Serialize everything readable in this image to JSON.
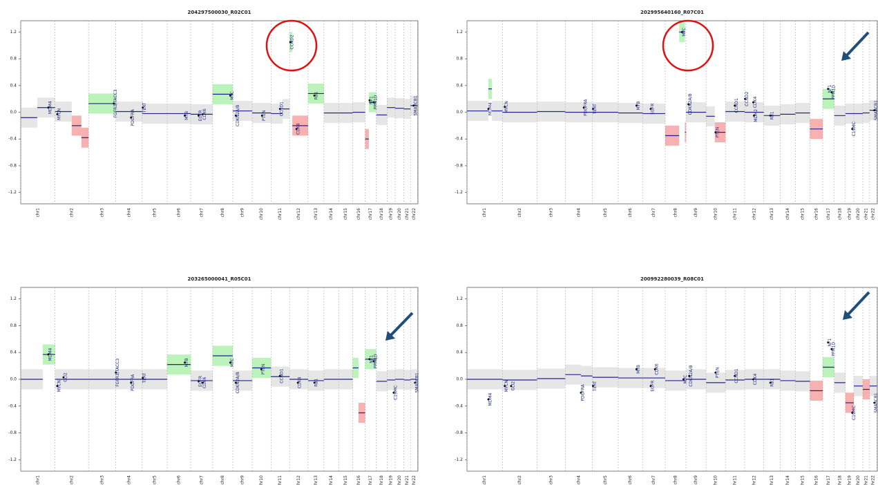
{
  "chart_data": [
    {
      "type": "segments",
      "title": "204297500030_R02C01",
      "xlim": [
        0,
        2881
      ],
      "ylim": [
        -1.37,
        1.37
      ],
      "yticks": [
        1.2,
        0.8,
        0.4,
        {
          "value": 0,
          "label": "0.0"
        },
        -0.4,
        -0.8,
        -1.2
      ],
      "xticks": [
        0,
        249,
        492,
        690,
        881,
        1062,
        1233,
        1392,
        1538,
        1679,
        1815,
        1950,
        2084,
        2199,
        2306,
        2408,
        2498,
        2579,
        2657,
        2716,
        2779,
        2827,
        2878
      ],
      "categories": [
        "chr1",
        "chr2",
        "chr3",
        "chr4",
        "chr5",
        "chr6",
        "chr7",
        "chr8",
        "chr9",
        "chr10",
        "chr11",
        "chr12",
        "chr13",
        "chr14",
        "chr15",
        "chr16",
        "chr17",
        "chr18",
        "chr19",
        "chr20",
        "chr21",
        "chr22"
      ],
      "segment_color": "#23238e",
      "gene_color": "#1a237e",
      "gain_color": "#3ddc3d",
      "loss_color": "#e82020",
      "neutral_color": "#b8b8b8",
      "segments": {
        "start": [
          0,
          120,
          249,
          370,
          440,
          492,
          690,
          881,
          1062,
          1233,
          1392,
          1538,
          1679,
          1815,
          1900,
          1950,
          1970,
          2084,
          2199,
          2306,
          2408,
          2498,
          2525,
          2579,
          2657,
          2716,
          2779,
          2827
        ],
        "end": [
          120,
          249,
          370,
          440,
          492,
          690,
          881,
          1062,
          1233,
          1392,
          1538,
          1679,
          1815,
          1900,
          1950,
          1970,
          2084,
          2199,
          2306,
          2408,
          2498,
          2525,
          2579,
          2657,
          2716,
          2779,
          2827,
          2878
        ],
        "values": [
          -0.08,
          0.07,
          0.01,
          -0.2,
          -0.38,
          0.13,
          0.01,
          -0.02,
          -0.02,
          -0.03,
          0.27,
          0.02,
          -0.01,
          -0.02,
          0.05,
          1.05,
          -0.2,
          0.28,
          -0.01,
          -0.01,
          0,
          -0.4,
          0.15,
          -0.04,
          0.07,
          0.06,
          0.05,
          0.1
        ]
      },
      "genes": {
        "labels": [
          "MDM4",
          "MYCN",
          "FGFR3/TACC3",
          "PDGFRA",
          "TERT",
          "MYB",
          "EGFR",
          "CDK6",
          "MYC",
          "CDKN2A/B",
          "PTEN",
          "CCND1",
          "CCND2",
          "CDK4",
          "RB1",
          "NF1",
          "PPM1D",
          "SMARCB1"
        ],
        "x": [
          200,
          265,
          675,
          800,
          885,
          1190,
          1290,
          1320,
          1520,
          1560,
          1750,
          1880,
          1955,
          2000,
          2130,
          2530,
          2560,
          2850
        ],
        "y": [
          0.07,
          -0.03,
          0.13,
          -0.08,
          0.07,
          -0.05,
          -0.05,
          -0.03,
          0.25,
          -0.05,
          -0.05,
          0.05,
          1.05,
          -0.25,
          0.25,
          0.18,
          0.15,
          0.1
        ]
      }
    },
    {
      "type": "segments",
      "title": "202995640160_R07C01",
      "xlim": [
        0,
        2881
      ],
      "ylim": [
        -1.37,
        1.37
      ],
      "yticks": [
        1.2,
        0.8,
        0.4,
        {
          "value": 0,
          "label": "0.0"
        },
        -0.4,
        -0.8,
        -1.2
      ],
      "xticks": [
        0,
        249,
        492,
        690,
        881,
        1062,
        1233,
        1392,
        1538,
        1679,
        1815,
        1950,
        2084,
        2199,
        2306,
        2408,
        2498,
        2579,
        2657,
        2716,
        2779,
        2827,
        2878
      ],
      "categories": [
        "chr1",
        "chr2",
        "chr3",
        "chr4",
        "chr5",
        "chr6",
        "chr7",
        "chr8",
        "chr9",
        "chr10",
        "chr11",
        "chr12",
        "chr13",
        "chr14",
        "chr15",
        "chr16",
        "chr17",
        "chr18",
        "chr19",
        "chr20",
        "chr21",
        "chr22"
      ],
      "segment_color": "#23238e",
      "gene_color": "#1a237e",
      "gain_color": "#3ddc3d",
      "loss_color": "#e82020",
      "neutral_color": "#b8b8b8",
      "segments": {
        "start": [
          0,
          150,
          175,
          249,
          492,
          690,
          881,
          1062,
          1233,
          1392,
          1490,
          1530,
          1538,
          1679,
          1740,
          1815,
          1950,
          2084,
          2199,
          2306,
          2408,
          2498,
          2579,
          2657,
          2716,
          2779,
          2827
        ],
        "end": [
          150,
          175,
          249,
          492,
          690,
          881,
          1062,
          1233,
          1392,
          1490,
          1530,
          1538,
          1679,
          1740,
          1815,
          1950,
          2084,
          2199,
          2306,
          2408,
          2498,
          2579,
          2657,
          2716,
          2779,
          2827,
          2878
        ],
        "values": [
          0.02,
          0.35,
          0.02,
          0,
          0.01,
          0,
          0,
          -0.01,
          -0.02,
          -0.35,
          1.2,
          -0.3,
          0,
          -0.06,
          -0.3,
          0.01,
          0,
          -0.05,
          -0.03,
          -0.01,
          -0.25,
          0.2,
          -0.05,
          -0.02,
          -0.02,
          -0.01,
          0.03
        ]
      },
      "genes": {
        "labels": [
          "MDM4",
          "MYCN",
          "PDGFRA",
          "TERT",
          "MYB",
          "EGFR",
          "MYC",
          "CDKN2A/B",
          "PTEN",
          "CCND1",
          "CCND2",
          "CDK4",
          "MDM2",
          "RB1",
          "NF1",
          "PPM1D",
          "C19MC",
          "SMARCB1"
        ],
        "x": [
          150,
          265,
          820,
          885,
          1190,
          1290,
          1510,
          1555,
          1745,
          1880,
          1952,
          2010,
          2015,
          2130,
          2535,
          2560,
          2705,
          2860
        ],
        "y": [
          0.05,
          0.08,
          0.07,
          0.05,
          0.1,
          0.05,
          1.2,
          0.12,
          -0.3,
          0.1,
          0.2,
          0.15,
          -0.05,
          -0.05,
          0.35,
          0.3,
          -0.25,
          0.03
        ]
      }
    },
    {
      "type": "segments",
      "title": "203265000041_R05C01",
      "xlim": [
        0,
        2881
      ],
      "ylim": [
        -1.37,
        1.37
      ],
      "yticks": [
        1.2,
        0.8,
        0.4,
        {
          "value": 0,
          "label": "0.0"
        },
        -0.4,
        -0.8,
        -1.2
      ],
      "xticks": [
        0,
        249,
        492,
        690,
        881,
        1062,
        1233,
        1392,
        1538,
        1679,
        1815,
        1950,
        2084,
        2199,
        2306,
        2408,
        2498,
        2579,
        2657,
        2716,
        2779,
        2827,
        2878
      ],
      "categories": [
        "chr1",
        "chr2",
        "chr3",
        "chr4",
        "chr5",
        "chr6",
        "chr7",
        "chr8",
        "chr9",
        "chr10",
        "chr11",
        "chr12",
        "chr13",
        "chr14",
        "chr15",
        "chr16",
        "chr17",
        "chr18",
        "chr19",
        "chr20",
        "chr21",
        "chr22"
      ],
      "segment_color": "#23238e",
      "gene_color": "#1a237e",
      "gain_color": "#3ddc3d",
      "loss_color": "#e82020",
      "neutral_color": "#b8b8b8",
      "segments": {
        "start": [
          0,
          160,
          249,
          492,
          690,
          881,
          1062,
          1233,
          1392,
          1538,
          1679,
          1815,
          1950,
          2084,
          2199,
          2306,
          2408,
          2450,
          2498,
          2579,
          2657,
          2716,
          2779,
          2827
        ],
        "end": [
          160,
          249,
          492,
          690,
          881,
          1062,
          1233,
          1392,
          1538,
          1679,
          1815,
          1950,
          2084,
          2199,
          2306,
          2408,
          2450,
          2498,
          2579,
          2657,
          2716,
          2779,
          2827,
          2878
        ],
        "values": [
          0,
          0.37,
          0,
          0,
          0,
          0,
          0.22,
          -0.02,
          0.35,
          -0.02,
          0.17,
          0.04,
          0,
          -0.02,
          0,
          0,
          0.17,
          -0.5,
          0.3,
          -0.03,
          -0.01,
          0,
          -0.01,
          0
        ]
      },
      "genes": {
        "labels": [
          "MDM4",
          "MYCN",
          "GLI2",
          "FGFR3/TACC3",
          "PDGFRA",
          "TERT",
          "MYB",
          "EGFR",
          "CDK6",
          "MYC",
          "CDKN2A/B",
          "PTEN",
          "CCND1",
          "CDK4",
          "RB1",
          "NF1",
          "PPM1D",
          "C19MC",
          "SMARCB1"
        ],
        "x": [
          200,
          265,
          310,
          690,
          800,
          885,
          1190,
          1290,
          1320,
          1520,
          1560,
          1745,
          1880,
          2010,
          2130,
          2530,
          2560,
          2705,
          2860
        ],
        "y": [
          0.37,
          -0.1,
          0.03,
          0.1,
          -0.05,
          0.02,
          0.25,
          -0.03,
          -0.05,
          0.25,
          -0.05,
          0.15,
          0.05,
          -0.05,
          -0.05,
          0.3,
          0.27,
          -0.2,
          -0.05
        ]
      }
    },
    {
      "type": "segments",
      "title": "200992280039_R08C01",
      "xlim": [
        0,
        2881
      ],
      "ylim": [
        -1.37,
        1.37
      ],
      "yticks": [
        1.2,
        0.8,
        0.4,
        {
          "value": 0,
          "label": "0.0"
        },
        -0.4,
        -0.8,
        -1.2
      ],
      "xticks": [
        0,
        249,
        492,
        690,
        881,
        1062,
        1233,
        1392,
        1538,
        1679,
        1815,
        1950,
        2084,
        2199,
        2306,
        2408,
        2498,
        2579,
        2657,
        2716,
        2779,
        2827,
        2878
      ],
      "categories": [
        "chr1",
        "chr2",
        "chr3",
        "chr4",
        "chr5",
        "chr6",
        "chr7",
        "chr8",
        "chr9",
        "chr10",
        "chr11",
        "chr12",
        "chr13",
        "chr14",
        "chr15",
        "chr16",
        "chr17",
        "chr18",
        "chr19",
        "chr20",
        "chr21",
        "chr22"
      ],
      "segment_color": "#23238e",
      "gene_color": "#1a237e",
      "gain_color": "#3ddc3d",
      "loss_color": "#e82020",
      "neutral_color": "#b8b8b8",
      "segments": {
        "start": [
          0,
          249,
          492,
          690,
          800,
          881,
          1062,
          1233,
          1392,
          1538,
          1679,
          1815,
          1950,
          2084,
          2199,
          2306,
          2408,
          2498,
          2579,
          2657,
          2716,
          2779,
          2827
        ],
        "end": [
          249,
          492,
          690,
          800,
          881,
          1062,
          1233,
          1392,
          1538,
          1679,
          1815,
          1950,
          2084,
          2199,
          2306,
          2408,
          2498,
          2579,
          2657,
          2716,
          2779,
          2827,
          2878
        ],
        "values": [
          0,
          -0.01,
          0.01,
          0.07,
          0.05,
          0.03,
          0.02,
          0.02,
          -0.02,
          0,
          -0.05,
          -0.01,
          0,
          0,
          -0.02,
          -0.03,
          -0.17,
          0.18,
          -0.05,
          -0.35,
          -0.1,
          -0.15,
          -0.1
        ]
      },
      "genes": {
        "labels": [
          "MDM4",
          "MYCN",
          "GLI2",
          "PDGFRA",
          "TERT",
          "MYB",
          "EGFR",
          "CDK6",
          "MYC",
          "CDKN2A/B",
          "PTEN",
          "CCND1",
          "CDK4",
          "RB1",
          "NF1",
          "PPM1D",
          "C19MC",
          "SMARCB1"
        ],
        "x": [
          150,
          265,
          310,
          800,
          885,
          1190,
          1290,
          1320,
          1520,
          1560,
          1745,
          1880,
          2010,
          2130,
          2535,
          2560,
          2705,
          2860
        ],
        "y": [
          -0.3,
          -0.1,
          -0.1,
          -0.2,
          -0.1,
          0.15,
          -0.1,
          0.15,
          0,
          0.05,
          0.1,
          0.05,
          0,
          -0.05,
          0.55,
          0.45,
          -0.5,
          -0.35
        ]
      }
    }
  ]
}
